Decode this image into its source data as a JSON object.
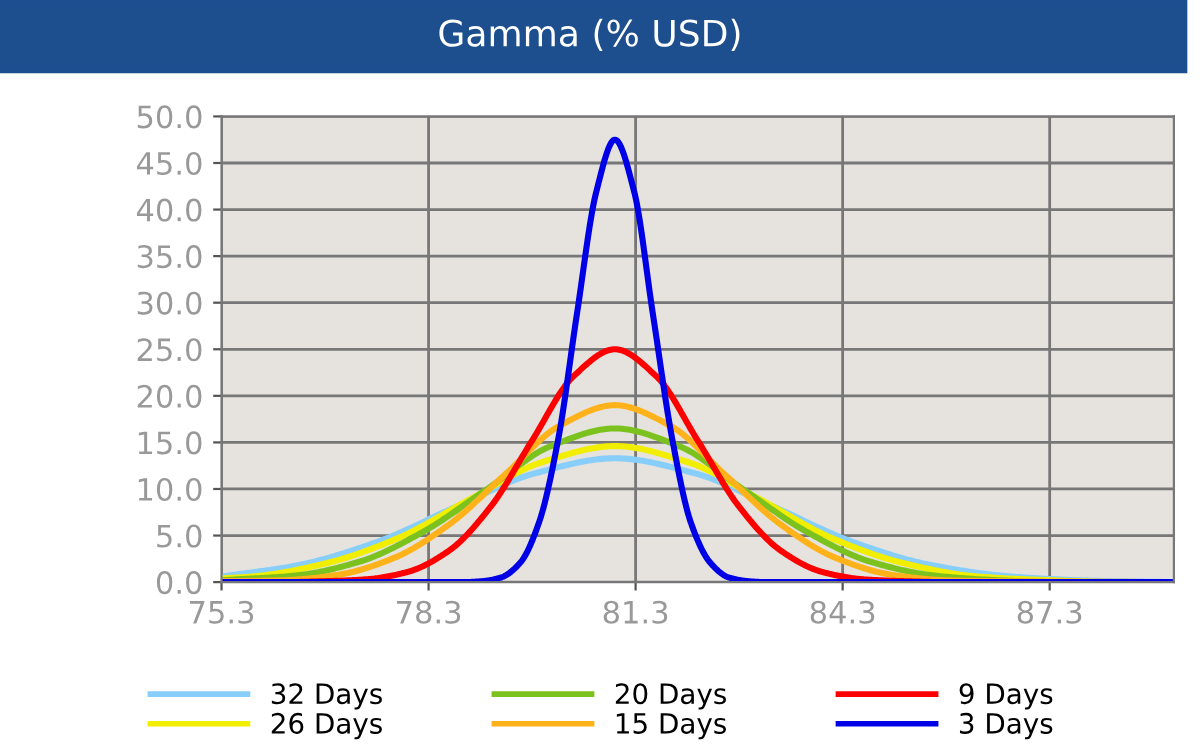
{
  "chart_data": {
    "type": "line",
    "title": "Gamma (% USD)",
    "xlim": [
      75.3,
      89.1
    ],
    "ylim": [
      0,
      50
    ],
    "xticks": [
      75.3,
      78.3,
      81.3,
      84.3,
      87.3
    ],
    "yticks": [
      {
        "value": 0,
        "label": "0.0"
      },
      {
        "value": 5,
        "label": "5.0"
      },
      {
        "value": 10,
        "label": "10.0"
      },
      {
        "value": 15,
        "label": "15.0"
      },
      {
        "value": 20,
        "label": "20.0"
      },
      {
        "value": 25,
        "label": "25.0"
      },
      {
        "value": 30,
        "label": "30.0"
      },
      {
        "value": 35,
        "label": "35.0"
      },
      {
        "value": 40,
        "label": "40.0"
      },
      {
        "value": 45,
        "label": "45.0"
      },
      {
        "value": 50,
        "label": "50.0"
      }
    ],
    "grid": true,
    "legend": "bottom",
    "marker": "none",
    "line_style": "solid",
    "series": [
      {
        "name": "32 Days",
        "color": "#87cefa",
        "x": [
          75.3,
          76.4,
          77.55,
          78.7,
          79.85,
          81,
          82.15,
          83.3,
          84.45,
          85.6,
          86.75,
          87.9,
          89.1
        ],
        "values": [
          0.6,
          1.8,
          4.3,
          8.1,
          11.7,
          13.3,
          11.7,
          8.1,
          4.3,
          1.8,
          0.6,
          0.15,
          0
        ]
      },
      {
        "name": "26 Days",
        "color": "#f2ee00",
        "x": [
          75.3,
          75.75,
          76.8,
          77.85,
          78.9,
          79.95,
          81,
          82.05,
          83.1,
          84.15,
          85.2,
          86.25,
          87.3,
          88.35,
          89.1
        ],
        "values": [
          0.4,
          0.6,
          2.0,
          4.7,
          8.9,
          12.9,
          14.6,
          12.9,
          8.9,
          4.7,
          2.0,
          0.6,
          0.2,
          0,
          0
        ]
      },
      {
        "name": "20 Days",
        "color": "#7cc21e",
        "x": [
          75.3,
          76.37,
          77.3,
          78.22,
          79.15,
          80.07,
          81,
          81.93,
          82.85,
          83.78,
          84.7,
          85.63,
          86.55,
          87.5,
          89.1
        ],
        "values": [
          0.2,
          0.7,
          2.2,
          5.4,
          10.0,
          14.6,
          16.5,
          14.6,
          10.0,
          5.4,
          2.2,
          0.7,
          0.2,
          0,
          0
        ]
      },
      {
        "name": "15 Days",
        "color": "#ffb21a",
        "x": [
          75.3,
          76.2,
          77.0,
          77.8,
          78.6,
          79.4,
          80.2,
          81,
          81.8,
          82.6,
          83.4,
          84.2,
          85.0,
          85.8,
          86.6,
          89.1
        ],
        "values": [
          0.1,
          0.2,
          0.8,
          2.6,
          6.2,
          11.5,
          16.8,
          19,
          16.8,
          11.5,
          6.2,
          2.6,
          0.8,
          0.2,
          0.1,
          0
        ]
      },
      {
        "name": "9 Days",
        "color": "#ff0000",
        "x": [
          75.3,
          76.2,
          76.8,
          77.4,
          78.0,
          78.6,
          79.2,
          79.8,
          80.4,
          81,
          81.6,
          82.2,
          82.8,
          83.4,
          84.0,
          84.6,
          85.2,
          85.8,
          89.1
        ],
        "values": [
          0,
          0,
          0.1,
          0.3,
          1.1,
          3.4,
          8.1,
          15.2,
          22.1,
          25,
          22.1,
          15.2,
          8.1,
          3.4,
          1.1,
          0.3,
          0.1,
          0,
          0
        ]
      },
      {
        "name": "3 Days",
        "color": "#0000e6",
        "x": [
          75.3,
          78.8,
          79.08,
          79.35,
          79.63,
          79.9,
          80.18,
          80.45,
          80.73,
          81,
          81.28,
          81.55,
          81.83,
          82.1,
          82.38,
          82.65,
          82.93,
          83.2,
          89.1
        ],
        "values": [
          0,
          0,
          0.1,
          0.5,
          2.1,
          6.4,
          15.4,
          28.8,
          41.9,
          47.5,
          41.9,
          28.8,
          15.4,
          6.4,
          2.1,
          0.5,
          0.1,
          0,
          0
        ]
      }
    ]
  }
}
